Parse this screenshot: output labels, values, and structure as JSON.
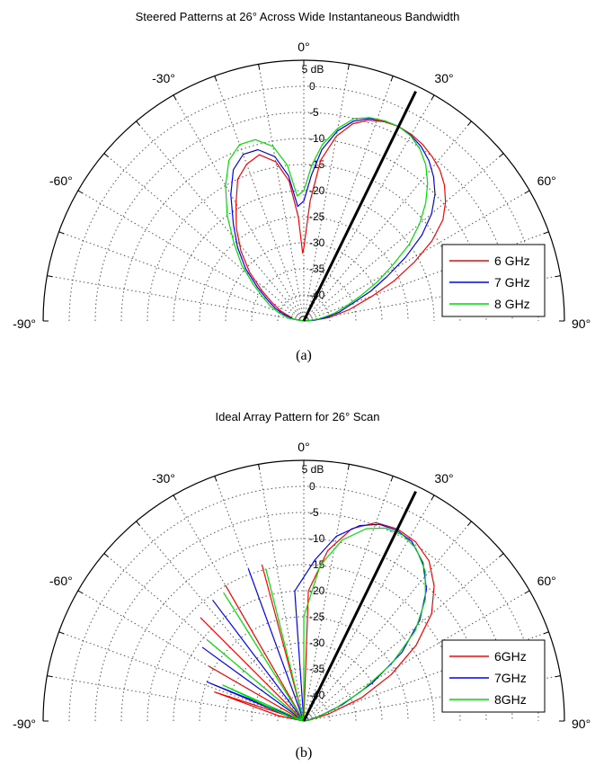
{
  "chart_data": [
    {
      "type": "polar-line",
      "title": "Steered Patterns at 26° Across Wide Instantaneous Bandwidth",
      "caption": "(a)",
      "theta_range_deg": [
        -90,
        90
      ],
      "r_range_db": [
        -45,
        5
      ],
      "angle_ticks": [
        "-90°",
        "-60°",
        "-30°",
        "0°",
        "30°",
        "60°",
        "90°"
      ],
      "r_ticks": [
        "5 dB",
        "0",
        "-5",
        "-10",
        "-15",
        "-20",
        "-25",
        "-30",
        "-35",
        "-40"
      ],
      "steer_angle_deg": 26,
      "legend_position": "bottom-right",
      "colors": {
        "6 GHz": "#ff0000",
        "7 GHz": "#0000ff",
        "8 GHz": "#00dd00",
        "steer": "#000000"
      },
      "series": [
        {
          "name": "6 GHz",
          "color": "#ff0000",
          "points": [
            [
              -90,
              -45
            ],
            [
              -80,
              -43
            ],
            [
              -72,
              -42
            ],
            [
              -66,
              -40
            ],
            [
              -60,
              -38
            ],
            [
              -54,
              -35
            ],
            [
              -48,
              -31
            ],
            [
              -42,
              -27
            ],
            [
              -36,
              -23
            ],
            [
              -30,
              -19
            ],
            [
              -25,
              -15
            ],
            [
              -20,
              -13
            ],
            [
              -15,
              -12
            ],
            [
              -10,
              -14
            ],
            [
              -6,
              -18
            ],
            [
              -3,
              -25
            ],
            [
              -1,
              -32
            ],
            [
              0,
              -31
            ],
            [
              3,
              -22
            ],
            [
              6,
              -14
            ],
            [
              10,
              -9
            ],
            [
              14,
              -6
            ],
            [
              18,
              -4.5
            ],
            [
              22,
              -3.8
            ],
            [
              26,
              -3.5
            ],
            [
              30,
              -3.7
            ],
            [
              34,
              -4.2
            ],
            [
              38,
              -5
            ],
            [
              42,
              -6
            ],
            [
              46,
              -7.5
            ],
            [
              50,
              -9.5
            ],
            [
              54,
              -12
            ],
            [
              58,
              -16
            ],
            [
              62,
              -21
            ],
            [
              66,
              -26
            ],
            [
              70,
              -31
            ],
            [
              76,
              -36
            ],
            [
              82,
              -40
            ],
            [
              86,
              -43
            ],
            [
              90,
              -45
            ]
          ]
        },
        {
          "name": "7 GHz",
          "color": "#0000ff",
          "points": [
            [
              -90,
              -45
            ],
            [
              -80,
              -43
            ],
            [
              -72,
              -41
            ],
            [
              -66,
              -39
            ],
            [
              -60,
              -37
            ],
            [
              -54,
              -34
            ],
            [
              -48,
              -30
            ],
            [
              -42,
              -26
            ],
            [
              -36,
              -22
            ],
            [
              -30,
              -17
            ],
            [
              -25,
              -13
            ],
            [
              -20,
              -11
            ],
            [
              -15,
              -11
            ],
            [
              -10,
              -13
            ],
            [
              -6,
              -17
            ],
            [
              -3,
              -23
            ],
            [
              0,
              -22
            ],
            [
              3,
              -17
            ],
            [
              6,
              -12
            ],
            [
              10,
              -8
            ],
            [
              14,
              -5.5
            ],
            [
              18,
              -4.2
            ],
            [
              22,
              -3.6
            ],
            [
              26,
              -3.5
            ],
            [
              30,
              -3.9
            ],
            [
              34,
              -4.7
            ],
            [
              38,
              -6
            ],
            [
              42,
              -7.8
            ],
            [
              46,
              -10
            ],
            [
              50,
              -13
            ],
            [
              54,
              -17
            ],
            [
              58,
              -22
            ],
            [
              62,
              -27
            ],
            [
              66,
              -31
            ],
            [
              70,
              -35
            ],
            [
              76,
              -38
            ],
            [
              82,
              -41
            ],
            [
              86,
              -43
            ],
            [
              90,
              -45
            ]
          ]
        },
        {
          "name": "8 GHz",
          "color": "#00dd00",
          "points": [
            [
              -90,
              -45
            ],
            [
              -80,
              -42
            ],
            [
              -72,
              -40
            ],
            [
              -66,
              -38
            ],
            [
              -60,
              -36
            ],
            [
              -54,
              -33
            ],
            [
              -48,
              -29
            ],
            [
              -42,
              -25
            ],
            [
              -36,
              -20
            ],
            [
              -30,
              -15
            ],
            [
              -25,
              -11
            ],
            [
              -20,
              -9
            ],
            [
              -15,
              -9
            ],
            [
              -10,
              -11
            ],
            [
              -6,
              -15
            ],
            [
              -3,
              -21
            ],
            [
              0,
              -20
            ],
            [
              3,
              -15
            ],
            [
              6,
              -11
            ],
            [
              10,
              -7.5
            ],
            [
              14,
              -5
            ],
            [
              18,
              -4
            ],
            [
              22,
              -3.6
            ],
            [
              26,
              -3.5
            ],
            [
              30,
              -4
            ],
            [
              34,
              -5.2
            ],
            [
              38,
              -7
            ],
            [
              42,
              -9.5
            ],
            [
              46,
              -12.5
            ],
            [
              50,
              -16
            ],
            [
              54,
              -20
            ],
            [
              58,
              -25
            ],
            [
              62,
              -29
            ],
            [
              66,
              -33
            ],
            [
              70,
              -36
            ],
            [
              76,
              -39
            ],
            [
              82,
              -42
            ],
            [
              86,
              -44
            ],
            [
              90,
              -45
            ]
          ]
        }
      ]
    },
    {
      "type": "polar-line",
      "title": "Ideal Array Pattern for 26° Scan",
      "caption": "(b)",
      "theta_range_deg": [
        -90,
        90
      ],
      "r_range_db": [
        -45,
        5
      ],
      "angle_ticks": [
        "-90°",
        "-60°",
        "-30°",
        "0°",
        "30°",
        "60°",
        "90°"
      ],
      "r_ticks": [
        "5 dB",
        "0",
        "-5",
        "-10",
        "-15",
        "-20",
        "-25",
        "-30",
        "-35",
        "-40"
      ],
      "steer_angle_deg": 26,
      "legend_position": "bottom-right",
      "colors": {
        "6GHz": "#ff0000",
        "7GHz": "#0000ff",
        "8GHz": "#00dd00",
        "steer": "#000000"
      },
      "series": [
        {
          "name": "6GHz",
          "color": "#ff0000",
          "points": [
            [
              -90,
              -45
            ],
            [
              -78,
              -40
            ],
            [
              -72,
              -27
            ],
            [
              -68,
              -45
            ],
            [
              -60,
              -24
            ],
            [
              -54,
              -45
            ],
            [
              -45,
              -17
            ],
            [
              -38,
              -45
            ],
            [
              -30,
              -15
            ],
            [
              -22,
              -45
            ],
            [
              -15,
              -14
            ],
            [
              -6,
              -45
            ],
            [
              2,
              -20
            ],
            [
              8,
              -12
            ],
            [
              14,
              -7
            ],
            [
              20,
              -4.5
            ],
            [
              26,
              -4
            ],
            [
              32,
              -4.5
            ],
            [
              38,
              -6
            ],
            [
              44,
              -9
            ],
            [
              50,
              -13
            ],
            [
              56,
              -19
            ],
            [
              62,
              -26
            ],
            [
              68,
              -33
            ],
            [
              74,
              -40
            ],
            [
              80,
              -44
            ],
            [
              90,
              -45
            ]
          ]
        },
        {
          "name": "7GHz",
          "color": "#0000ff",
          "points": [
            [
              -90,
              -45
            ],
            [
              -76,
              -43
            ],
            [
              -68,
              -25
            ],
            [
              -62,
              -45
            ],
            [
              -54,
              -21
            ],
            [
              -46,
              -45
            ],
            [
              -37,
              -16
            ],
            [
              -28,
              -45
            ],
            [
              -20,
              -14
            ],
            [
              -12,
              -45
            ],
            [
              -4,
              -20
            ],
            [
              4,
              -14
            ],
            [
              10,
              -9
            ],
            [
              16,
              -6
            ],
            [
              21,
              -4.6
            ],
            [
              26,
              -4.3
            ],
            [
              31,
              -4.8
            ],
            [
              37,
              -7
            ],
            [
              43,
              -10.5
            ],
            [
              49,
              -15.5
            ],
            [
              55,
              -22
            ],
            [
              61,
              -30
            ],
            [
              67,
              -37
            ],
            [
              73,
              -42
            ],
            [
              80,
              -44.5
            ],
            [
              90,
              -45
            ]
          ]
        },
        {
          "name": "8GHz",
          "color": "#00dd00",
          "points": [
            [
              -90,
              -45
            ],
            [
              -74,
              -42
            ],
            [
              -66,
              -28
            ],
            [
              -58,
              -45
            ],
            [
              -50,
              -21
            ],
            [
              -42,
              -45
            ],
            [
              -32,
              -16
            ],
            [
              -22,
              -45
            ],
            [
              -14,
              -15
            ],
            [
              -6,
              -45
            ],
            [
              0,
              -25
            ],
            [
              6,
              -15
            ],
            [
              12,
              -9.5
            ],
            [
              18,
              -6.2
            ],
            [
              23,
              -4.8
            ],
            [
              28,
              -4.6
            ],
            [
              33,
              -5.5
            ],
            [
              39,
              -8
            ],
            [
              45,
              -12
            ],
            [
              51,
              -17.5
            ],
            [
              57,
              -25
            ],
            [
              63,
              -33
            ],
            [
              69,
              -39
            ],
            [
              76,
              -43
            ],
            [
              90,
              -45
            ]
          ]
        }
      ]
    }
  ]
}
